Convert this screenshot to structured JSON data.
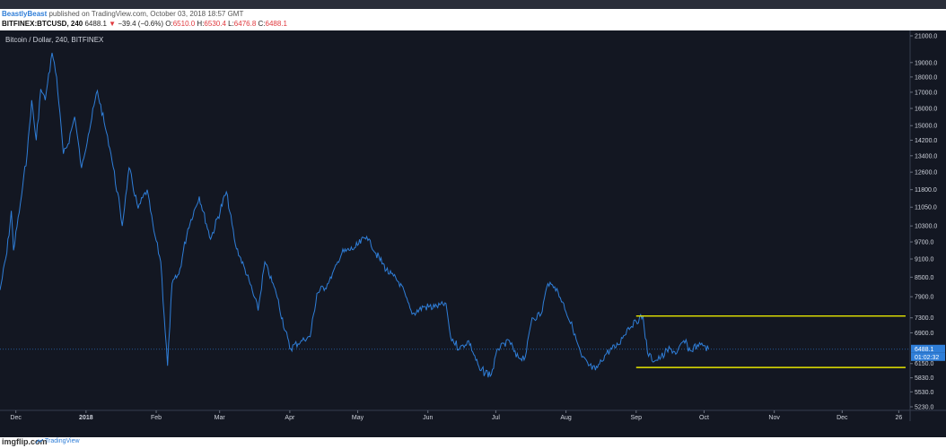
{
  "header": {
    "author": "BeastlyBeast",
    "published_text": "published on TradingView.com, October 03, 2018 18:57 GMT",
    "symbol": "BITFINEX:BTCUSD, 240",
    "last": "6488.1",
    "change_arrow": "▼",
    "change": "−39.4 (−0.6%)",
    "o_label": "O:",
    "o_value": "6510.0",
    "h_label": "H:",
    "h_value": "6530.4",
    "l_label": "L:",
    "l_value": "6476.8",
    "c_label": "C:",
    "c_value": "6488.1"
  },
  "chart_title": "Bitcoin / Dollar, 240, BITFINEX",
  "footer": {
    "watermark": "imgflip.com",
    "brand": "TradingView"
  },
  "colors": {
    "background": "#131722",
    "price_line": "#2f7ed8",
    "support_resistance": "#e6e600",
    "axis_text": "#cfd3dc",
    "badge": "#2f7ed8"
  },
  "chart_data": {
    "type": "line",
    "title": "Bitcoin / Dollar, 240, BITFINEX",
    "xlabel": "",
    "ylabel": "",
    "y_scale": "log",
    "ylim": [
      5230,
      21000
    ],
    "x_ticks": [
      "Dec",
      "2018",
      "Feb",
      "Mar",
      "Apr",
      "May",
      "Jun",
      "Jul",
      "Aug",
      "Sep",
      "Oct",
      "Nov",
      "Dec",
      "26"
    ],
    "x_tick_dates": [
      "2017-12-01",
      "2018-01-01",
      "2018-02-01",
      "2018-03-01",
      "2018-04-01",
      "2018-05-01",
      "2018-06-01",
      "2018-07-01",
      "2018-08-01",
      "2018-09-01",
      "2018-10-01",
      "2018-11-01",
      "2018-12-01",
      "2018-12-26"
    ],
    "y_ticks": [
      21000.0,
      19000.0,
      18000.0,
      17000.0,
      16000.0,
      15000.0,
      14200.0,
      13400.0,
      12600.0,
      11800.0,
      11050.0,
      10300.0,
      9700.0,
      9100.0,
      8500.0,
      7900.0,
      7300.0,
      6900.0,
      6150.0,
      5830.0,
      5530.0,
      5230.0
    ],
    "last_price": "6488.1",
    "countdown": "01:02:32",
    "series": [
      {
        "points": [
          [
            "2017-11-24",
            8100
          ],
          [
            "2017-11-27",
            9300
          ],
          [
            "2017-11-29",
            10900
          ],
          [
            "2017-11-30",
            9400
          ],
          [
            "2017-12-03",
            11200
          ],
          [
            "2017-12-06",
            13500
          ],
          [
            "2017-12-08",
            16500
          ],
          [
            "2017-12-10",
            14200
          ],
          [
            "2017-12-12",
            17200
          ],
          [
            "2017-12-14",
            16500
          ],
          [
            "2017-12-17",
            19700
          ],
          [
            "2017-12-19",
            18000
          ],
          [
            "2017-12-22",
            13500
          ],
          [
            "2017-12-24",
            14000
          ],
          [
            "2017-12-27",
            15500
          ],
          [
            "2017-12-30",
            12800
          ],
          [
            "2018-01-02",
            14500
          ],
          [
            "2018-01-06",
            17100
          ],
          [
            "2018-01-09",
            15200
          ],
          [
            "2018-01-12",
            13500
          ],
          [
            "2018-01-16",
            11000
          ],
          [
            "2018-01-17",
            10300
          ],
          [
            "2018-01-20",
            12800
          ],
          [
            "2018-01-24",
            11000
          ],
          [
            "2018-01-28",
            11800
          ],
          [
            "2018-01-31",
            10100
          ],
          [
            "2018-02-03",
            9000
          ],
          [
            "2018-02-06",
            6100
          ],
          [
            "2018-02-08",
            8300
          ],
          [
            "2018-02-11",
            8600
          ],
          [
            "2018-02-15",
            10200
          ],
          [
            "2018-02-20",
            11500
          ],
          [
            "2018-02-25",
            9800
          ],
          [
            "2018-03-04",
            11700
          ],
          [
            "2018-03-08",
            9600
          ],
          [
            "2018-03-14",
            8400
          ],
          [
            "2018-03-18",
            7500
          ],
          [
            "2018-03-21",
            9000
          ],
          [
            "2018-03-26",
            8000
          ],
          [
            "2018-04-01",
            6500
          ],
          [
            "2018-04-06",
            6700
          ],
          [
            "2018-04-10",
            6800
          ],
          [
            "2018-04-13",
            8000
          ],
          [
            "2018-04-18",
            8300
          ],
          [
            "2018-04-24",
            9300
          ],
          [
            "2018-04-30",
            9500
          ],
          [
            "2018-05-05",
            9900
          ],
          [
            "2018-05-09",
            9300
          ],
          [
            "2018-05-15",
            8600
          ],
          [
            "2018-05-20",
            8300
          ],
          [
            "2018-05-25",
            7400
          ],
          [
            "2018-05-30",
            7600
          ],
          [
            "2018-06-04",
            7600
          ],
          [
            "2018-06-09",
            7700
          ],
          [
            "2018-06-11",
            6800
          ],
          [
            "2018-06-15",
            6500
          ],
          [
            "2018-06-19",
            6700
          ],
          [
            "2018-06-24",
            6000
          ],
          [
            "2018-06-29",
            5900
          ],
          [
            "2018-07-02",
            6500
          ],
          [
            "2018-07-07",
            6700
          ],
          [
            "2018-07-10",
            6300
          ],
          [
            "2018-07-14",
            6300
          ],
          [
            "2018-07-17",
            7300
          ],
          [
            "2018-07-21",
            7400
          ],
          [
            "2018-07-24",
            8300
          ],
          [
            "2018-07-27",
            8200
          ],
          [
            "2018-07-31",
            7700
          ],
          [
            "2018-08-04",
            7000
          ],
          [
            "2018-08-08",
            6300
          ],
          [
            "2018-08-11",
            6100
          ],
          [
            "2018-08-14",
            6000
          ],
          [
            "2018-08-19",
            6400
          ],
          [
            "2018-08-24",
            6600
          ],
          [
            "2018-08-28",
            7000
          ],
          [
            "2018-09-01",
            7200
          ],
          [
            "2018-09-04",
            7350
          ],
          [
            "2018-09-06",
            6400
          ],
          [
            "2018-09-09",
            6200
          ],
          [
            "2018-09-12",
            6300
          ],
          [
            "2018-09-16",
            6500
          ],
          [
            "2018-09-19",
            6400
          ],
          [
            "2018-09-22",
            6700
          ],
          [
            "2018-09-25",
            6450
          ],
          [
            "2018-09-28",
            6600
          ],
          [
            "2018-10-01",
            6580
          ],
          [
            "2018-10-03",
            6488
          ]
        ]
      }
    ],
    "horizontal_lines": [
      {
        "price": 7350,
        "from": "2018-09-01",
        "to": "2018-12-29"
      },
      {
        "price": 6060,
        "from": "2018-09-01",
        "to": "2018-12-29"
      }
    ],
    "grid": false,
    "legend": "none"
  }
}
